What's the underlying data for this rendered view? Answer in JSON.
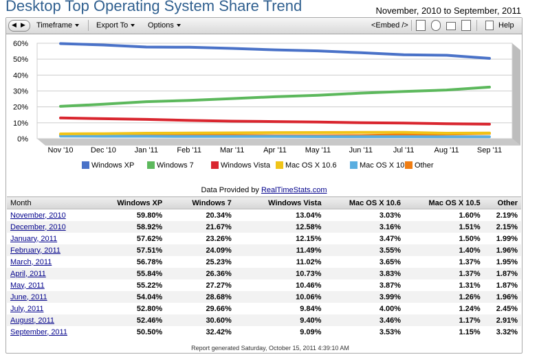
{
  "header": {
    "title": "Desktop Top Operating System Share Trend",
    "date_range": "November, 2010 to September, 2011"
  },
  "toolbar": {
    "timeframe": "Timeframe",
    "export_to": "Export To",
    "options": "Options",
    "embed": "<Embed />",
    "help": "Help"
  },
  "chart_data": {
    "type": "line",
    "title": "",
    "xlabel": "",
    "ylabel": "",
    "categories": [
      "Nov '10",
      "Dec '10",
      "Jan '11",
      "Feb '11",
      "Mar '11",
      "Apr '11",
      "May '11",
      "Jun '11",
      "Jul '11",
      "Aug '11",
      "Sep '11"
    ],
    "y_ticks": [
      "0%",
      "10%",
      "20%",
      "30%",
      "40%",
      "50%",
      "60%"
    ],
    "ylim": [
      0,
      60
    ],
    "grid": true,
    "legend_position": "bottom",
    "series": [
      {
        "name": "Windows XP",
        "color": "#4a72c8",
        "values": [
          59.8,
          58.92,
          57.62,
          57.51,
          56.78,
          55.84,
          55.22,
          54.04,
          52.8,
          52.46,
          50.5
        ]
      },
      {
        "name": "Windows 7",
        "color": "#5cb85c",
        "values": [
          20.34,
          21.67,
          23.26,
          24.09,
          25.23,
          26.36,
          27.27,
          28.68,
          29.66,
          30.6,
          32.42
        ]
      },
      {
        "name": "Windows Vista",
        "color": "#d9262f",
        "values": [
          13.04,
          12.58,
          12.15,
          11.49,
          11.02,
          10.73,
          10.46,
          10.06,
          9.84,
          9.4,
          9.09
        ]
      },
      {
        "name": "Mac OS X 10.6",
        "color": "#f0c419",
        "values": [
          3.03,
          3.16,
          3.47,
          3.55,
          3.65,
          3.83,
          3.87,
          3.99,
          4.0,
          3.46,
          3.53
        ]
      },
      {
        "name": "Mac OS X 10.5",
        "color": "#5aaee0",
        "values": [
          1.6,
          1.51,
          1.5,
          1.4,
          1.37,
          1.37,
          1.31,
          1.26,
          1.24,
          1.17,
          1.15
        ]
      },
      {
        "name": "Other",
        "color": "#f07d12",
        "values": [
          2.19,
          2.15,
          1.99,
          1.96,
          1.95,
          1.87,
          1.87,
          1.96,
          2.45,
          2.91,
          3.32
        ]
      }
    ]
  },
  "data_provided": {
    "prefix": "Data Provided by",
    "link": "RealTimeStats.com"
  },
  "table": {
    "headers": [
      "Month",
      "Windows XP",
      "Windows 7",
      "Windows Vista",
      "Mac OS X 10.6",
      "Mac OS X 10.5",
      "Other"
    ],
    "rows": [
      [
        "November, 2010",
        "59.80%",
        "20.34%",
        "13.04%",
        "3.03%",
        "1.60%",
        "2.19%"
      ],
      [
        "December, 2010",
        "58.92%",
        "21.67%",
        "12.58%",
        "3.16%",
        "1.51%",
        "2.15%"
      ],
      [
        "January, 2011",
        "57.62%",
        "23.26%",
        "12.15%",
        "3.47%",
        "1.50%",
        "1.99%"
      ],
      [
        "February, 2011",
        "57.51%",
        "24.09%",
        "11.49%",
        "3.55%",
        "1.40%",
        "1.96%"
      ],
      [
        "March, 2011",
        "56.78%",
        "25.23%",
        "11.02%",
        "3.65%",
        "1.37%",
        "1.95%"
      ],
      [
        "April, 2011",
        "55.84%",
        "26.36%",
        "10.73%",
        "3.83%",
        "1.37%",
        "1.87%"
      ],
      [
        "May, 2011",
        "55.22%",
        "27.27%",
        "10.46%",
        "3.87%",
        "1.31%",
        "1.87%"
      ],
      [
        "June, 2011",
        "54.04%",
        "28.68%",
        "10.06%",
        "3.99%",
        "1.26%",
        "1.96%"
      ],
      [
        "July, 2011",
        "52.80%",
        "29.66%",
        "9.84%",
        "4.00%",
        "1.24%",
        "2.45%"
      ],
      [
        "August, 2011",
        "52.46%",
        "30.60%",
        "9.40%",
        "3.46%",
        "1.17%",
        "2.91%"
      ],
      [
        "September, 2011",
        "50.50%",
        "32.42%",
        "9.09%",
        "3.53%",
        "1.15%",
        "3.32%"
      ]
    ]
  },
  "footer": {
    "report_generated": "Report generated Saturday, October 15, 2011 4:39:10 AM"
  }
}
